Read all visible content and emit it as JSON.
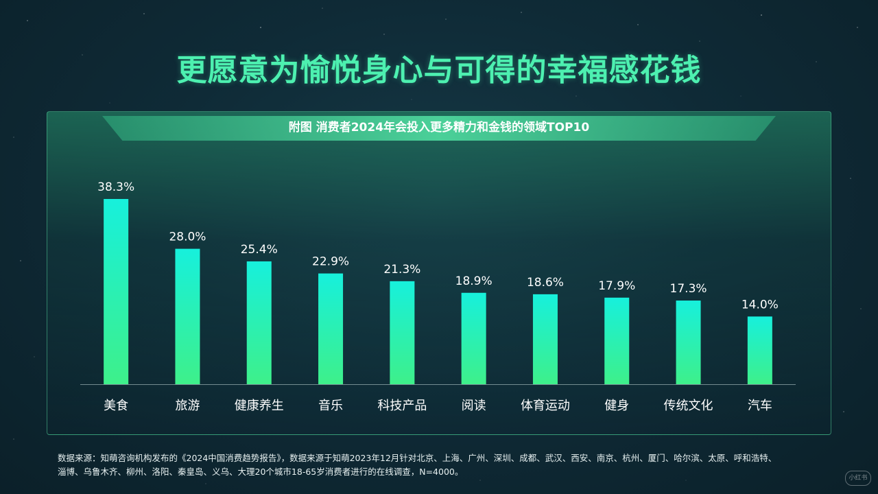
{
  "page": {
    "title": "更愿意为愉悦身心与可得的幸福感花钱",
    "footnote_line1": "数据来源：知萌咨询机构发布的《2024中国消费趋势报告》，数据来源于知萌2023年12月针对北京、上海、广州、深圳、成都、武汉、西安、南京、杭州、厦门、哈尔滨、太原、呼和浩特、",
    "footnote_line2": "淄博、乌鲁木齐、柳州、洛阳、秦皇岛、义乌、大理20个城市18-65岁消费者进行的在线调查，N=4000。",
    "watermark": "小红书"
  },
  "colors": {
    "title": "#4df0b0",
    "bar_top": "#17f0dc",
    "bar_bottom": "#3ef08a",
    "label": "#ffffff"
  },
  "chart_data": {
    "type": "bar",
    "title": "附图  消费者2024年会投入更多精力和金钱的领域TOP10",
    "categories": [
      "美食",
      "旅游",
      "健康养生",
      "音乐",
      "科技产品",
      "阅读",
      "体育运动",
      "健身",
      "传统文化",
      "汽车"
    ],
    "values": [
      38.3,
      28.0,
      25.4,
      22.9,
      21.3,
      18.9,
      18.6,
      17.9,
      17.3,
      14.0
    ],
    "value_labels": [
      "38.3%",
      "28.0%",
      "25.4%",
      "22.9%",
      "21.3%",
      "18.9%",
      "18.6%",
      "17.9%",
      "17.3%",
      "14.0%"
    ],
    "unit": "%",
    "ylim": [
      0,
      38.3
    ],
    "grid": false,
    "legend": "none"
  }
}
